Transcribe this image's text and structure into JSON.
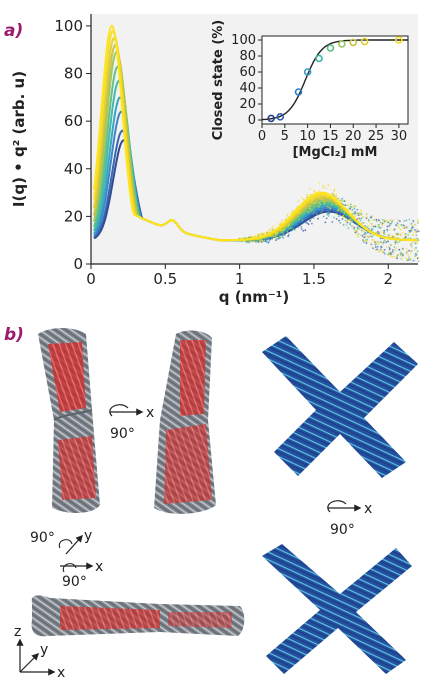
{
  "panel_a": {
    "label": "a)",
    "chart_data": {
      "type": "line",
      "xlabel": "q (nm⁻¹)",
      "ylabel": "I(q) • q² (arb. u)",
      "xlim": [
        0,
        2.2
      ],
      "ylim": [
        0,
        105
      ],
      "xticks": [
        "0",
        "0.5",
        "1",
        "1.5",
        "2"
      ],
      "xtick_values": [
        0,
        0.5,
        1,
        1.5,
        2
      ],
      "yticks": [
        "0",
        "20",
        "40",
        "60",
        "80",
        "100"
      ],
      "ytick_values": [
        0,
        20,
        40,
        60,
        80,
        100
      ],
      "grid": false,
      "background": "#f2f2f2",
      "series_colors": [
        "#27408b",
        "#2e5fb0",
        "#2f7fc4",
        "#2f9fc0",
        "#3ab6a8",
        "#5cbf80",
        "#9ac558",
        "#c8c040",
        "#e2cf2e",
        "#f5dd1e",
        "#ffe31a"
      ],
      "peak_heights": [
        52,
        56,
        64,
        70,
        77,
        83,
        89,
        92,
        95,
        98,
        100
      ]
    },
    "inset": {
      "chart_data": {
        "type": "scatter",
        "xlabel": "[MgCl₂] mM",
        "ylabel": "Closed state (%)",
        "xlim": [
          0,
          32
        ],
        "ylim": [
          -5,
          105
        ],
        "xticks": [
          "0",
          "5",
          "10",
          "15",
          "20",
          "25",
          "30"
        ],
        "xtick_values": [
          0,
          5,
          10,
          15,
          20,
          25,
          30
        ],
        "yticks": [
          "0",
          "20",
          "40",
          "60",
          "80",
          "100"
        ],
        "ytick_values": [
          0,
          20,
          40,
          60,
          80,
          100
        ],
        "points": [
          {
            "x": 2,
            "y": 2,
            "color": "#27408b"
          },
          {
            "x": 4,
            "y": 4,
            "color": "#2e5fb0"
          },
          {
            "x": 8,
            "y": 35,
            "color": "#2f7fc4"
          },
          {
            "x": 10,
            "y": 60,
            "color": "#2f9fc0"
          },
          {
            "x": 12.5,
            "y": 77,
            "color": "#3ab6a8"
          },
          {
            "x": 15,
            "y": 90,
            "color": "#5cbf80"
          },
          {
            "x": 17.5,
            "y": 95,
            "color": "#9ac558"
          },
          {
            "x": 20,
            "y": 97,
            "color": "#c8c040"
          },
          {
            "x": 22.5,
            "y": 98,
            "color": "#e2cf2e"
          },
          {
            "x": 30,
            "y": 100,
            "color": "#f5dd1e"
          }
        ],
        "fit": {
          "type": "sigmoid",
          "midpoint": 9.5,
          "slope": 0.55,
          "color": "#222222"
        }
      }
    }
  },
  "panel_b": {
    "label": "b)",
    "rotations": {
      "top_x": {
        "angle": "90°",
        "axis": "x"
      },
      "right_x": {
        "angle": "90°",
        "axis": "x"
      },
      "yx_first": {
        "angle": "90°",
        "axis": "y"
      },
      "yx_second": {
        "angle": "90°",
        "axis": "x"
      }
    },
    "triad": {
      "z": "z",
      "y": "y",
      "x": "x"
    },
    "colors": {
      "rod_gray": "#8a8f96",
      "rod_red": "#d63a3a",
      "cross_blue": "#2a5db0",
      "cross_cyan": "#4fb6d6"
    }
  }
}
